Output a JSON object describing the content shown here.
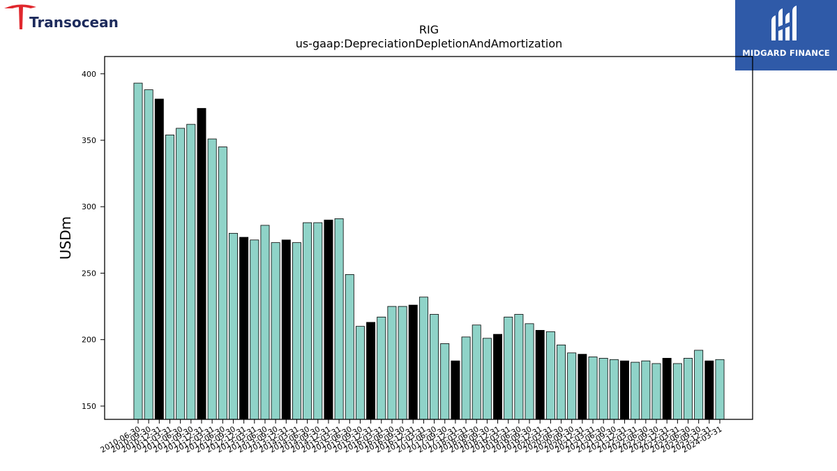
{
  "brand_left": {
    "name": "Transocean",
    "color": "#e0282e",
    "text_color": "#1d2b5c"
  },
  "brand_right": {
    "name": "MIDGARD FINANCE",
    "bg_color": "#2f5aa8"
  },
  "chart_data": {
    "type": "bar",
    "title": "RIG",
    "subtitle": "us-gaap:DepreciationDepletionAndAmortization",
    "ylabel": "USDm",
    "xlabel": "",
    "ylim": [
      140,
      413
    ],
    "yticks": [
      150,
      200,
      250,
      300,
      350,
      400
    ],
    "grid": false,
    "colors": {
      "default": "#8fd3c8",
      "highlight": "#000000",
      "edge": "#000000"
    },
    "categories": [
      "2010-06-30",
      "2010-09-30",
      "2010-12-31",
      "2011-03-31",
      "2011-06-30",
      "2011-09-30",
      "2011-12-31",
      "2012-03-31",
      "2012-06-30",
      "2012-09-30",
      "2012-12-31",
      "2013-03-31",
      "2013-06-30",
      "2013-09-30",
      "2013-12-31",
      "2014-03-31",
      "2014-06-30",
      "2014-09-30",
      "2014-12-31",
      "2015-03-31",
      "2015-06-30",
      "2015-09-30",
      "2015-12-31",
      "2016-03-31",
      "2016-06-30",
      "2016-09-30",
      "2016-12-31",
      "2017-03-31",
      "2017-06-30",
      "2017-09-30",
      "2017-12-31",
      "2018-03-31",
      "2018-06-30",
      "2018-09-30",
      "2018-12-31",
      "2019-03-31",
      "2019-06-30",
      "2019-09-30",
      "2019-12-31",
      "2020-03-31",
      "2020-06-30",
      "2020-09-30",
      "2020-12-31",
      "2021-03-31",
      "2021-06-30",
      "2021-09-30",
      "2021-12-31",
      "2022-03-31",
      "2022-06-30",
      "2022-09-30",
      "2022-12-31",
      "2023-03-31",
      "2023-06-30",
      "2023-09-30",
      "2023-12-31",
      "2024-03-31"
    ],
    "values": [
      393,
      388,
      381,
      354,
      359,
      362,
      374,
      351,
      345,
      280,
      277,
      275,
      286,
      273,
      275,
      273,
      288,
      288,
      290,
      291,
      249,
      210,
      213,
      217,
      225,
      225,
      226,
      232,
      219,
      197,
      184,
      202,
      211,
      201,
      204,
      217,
      219,
      212,
      207,
      206,
      196,
      190,
      189,
      187,
      186,
      185,
      184,
      183,
      184,
      182,
      186,
      182,
      186,
      192,
      184,
      185
    ],
    "highlight": [
      false,
      false,
      true,
      false,
      false,
      false,
      true,
      false,
      false,
      false,
      true,
      false,
      false,
      false,
      true,
      false,
      false,
      false,
      true,
      false,
      false,
      false,
      true,
      false,
      false,
      false,
      true,
      false,
      false,
      false,
      true,
      false,
      false,
      false,
      true,
      false,
      false,
      false,
      true,
      false,
      false,
      false,
      true,
      false,
      false,
      false,
      true,
      false,
      false,
      false,
      true,
      false,
      false,
      false,
      true,
      false
    ]
  }
}
